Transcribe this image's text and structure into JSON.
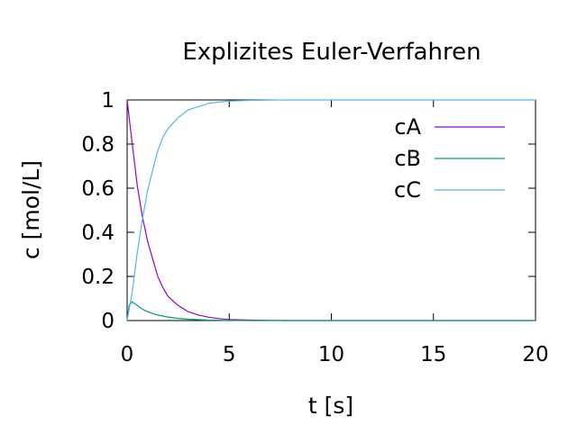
{
  "chart_data": {
    "type": "line",
    "title": "Explizites Euler-Verfahren",
    "xlabel": "t [s]",
    "ylabel": "c [mol/L]",
    "xlim": [
      0,
      20
    ],
    "ylim": [
      0,
      1
    ],
    "xticks": [
      0,
      5,
      10,
      15,
      20
    ],
    "yticks": [
      0,
      0.2,
      0.4,
      0.6,
      0.8,
      1
    ],
    "xtick_labels": [
      "0",
      "5",
      "10",
      "15",
      "20"
    ],
    "ytick_labels": [
      "0",
      "0.2",
      "0.4",
      "0.6",
      "0.8",
      "1"
    ],
    "legend_position": "top-right",
    "grid": false,
    "series": [
      {
        "name": "cA",
        "color": "#9400d3",
        "x": [
          0,
          0.25,
          0.5,
          0.75,
          1,
          1.25,
          1.5,
          1.75,
          2,
          2.5,
          3,
          3.5,
          4,
          4.5,
          5,
          6,
          7,
          8,
          10,
          12,
          14,
          16,
          18,
          20
        ],
        "y": [
          1,
          0.8,
          0.61,
          0.47,
          0.36,
          0.28,
          0.2,
          0.15,
          0.11,
          0.068,
          0.04,
          0.025,
          0.015,
          0.009,
          0.005,
          0.002,
          0.001,
          0,
          0,
          0,
          0,
          0,
          0,
          0
        ]
      },
      {
        "name": "cB",
        "color": "#009e73",
        "x": [
          0,
          0.1,
          0.25,
          0.4,
          0.75,
          1,
          1.5,
          2,
          2.5,
          3,
          3.5,
          4,
          5,
          6,
          7,
          8,
          10,
          12,
          14,
          16,
          18,
          20
        ],
        "y": [
          0,
          0.07,
          0.085,
          0.075,
          0.052,
          0.04,
          0.025,
          0.016,
          0.01,
          0.006,
          0.004,
          0.002,
          0.001,
          0,
          0,
          0,
          0,
          0,
          0,
          0,
          0,
          0
        ]
      },
      {
        "name": "cC",
        "color": "#56b4e9",
        "x": [
          0,
          0.25,
          0.5,
          0.75,
          1,
          1.25,
          1.5,
          1.75,
          2,
          2.5,
          3,
          3.5,
          4,
          4.5,
          5,
          6,
          7,
          8,
          10,
          12,
          14,
          16,
          18,
          20
        ],
        "y": [
          0,
          0.13,
          0.31,
          0.46,
          0.59,
          0.68,
          0.77,
          0.83,
          0.87,
          0.92,
          0.955,
          0.97,
          0.985,
          0.99,
          0.995,
          0.998,
          0.999,
          1,
          1,
          1,
          1,
          1,
          1,
          1
        ]
      }
    ]
  }
}
